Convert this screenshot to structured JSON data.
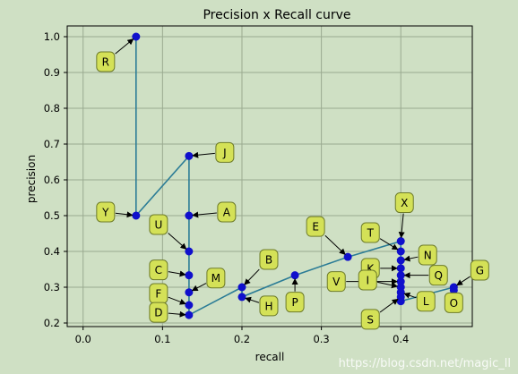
{
  "watermark": "https://blog.csdn.net/magic_ll",
  "chart_data": {
    "type": "line",
    "title": "Precision x Recall curve",
    "xlabel": "recall",
    "ylabel": "precision",
    "xlim": [
      -0.02,
      0.49
    ],
    "ylim": [
      0.19,
      1.03
    ],
    "xticks": [
      0.0,
      0.1,
      0.2,
      0.3,
      0.4
    ],
    "xtick_labels": [
      "0.0",
      "0.1",
      "0.2",
      "0.3",
      "0.4"
    ],
    "yticks": [
      0.2,
      0.3,
      0.4,
      0.5,
      0.6,
      0.7,
      0.8,
      0.9,
      1.0
    ],
    "ytick_labels": [
      "0.2",
      "0.3",
      "0.4",
      "0.5",
      "0.6",
      "0.7",
      "0.8",
      "0.9",
      "1.0"
    ],
    "grid": true,
    "series": [
      {
        "x": [
          0.0667,
          0.0667,
          0.1333,
          0.1333,
          0.1333,
          0.1333,
          0.1333,
          0.1333,
          0.1333,
          0.2,
          0.2,
          0.2667,
          0.3333,
          0.4,
          0.4,
          0.4,
          0.4,
          0.4,
          0.4,
          0.4,
          0.4,
          0.4,
          0.4,
          0.4667,
          0.4667
        ],
        "y": [
          1.0,
          0.5,
          0.6667,
          0.5,
          0.4,
          0.3333,
          0.2857,
          0.25,
          0.2222,
          0.3,
          0.2727,
          0.3333,
          0.3846,
          0.4286,
          0.4,
          0.375,
          0.3529,
          0.3333,
          0.3158,
          0.3,
          0.2857,
          0.2727,
          0.2609,
          0.3,
          0.2917
        ]
      }
    ],
    "annotations": [
      {
        "label": "R",
        "x": 0.0667,
        "y": 1.0
      },
      {
        "label": "Y",
        "x": 0.0667,
        "y": 0.5
      },
      {
        "label": "J",
        "x": 0.1333,
        "y": 0.6667
      },
      {
        "label": "A",
        "x": 0.1333,
        "y": 0.5
      },
      {
        "label": "U",
        "x": 0.1333,
        "y": 0.4
      },
      {
        "label": "C",
        "x": 0.1333,
        "y": 0.3333
      },
      {
        "label": "M",
        "x": 0.1333,
        "y": 0.2857
      },
      {
        "label": "F",
        "x": 0.1333,
        "y": 0.25
      },
      {
        "label": "D",
        "x": 0.1333,
        "y": 0.2222
      },
      {
        "label": "B",
        "x": 0.2,
        "y": 0.3
      },
      {
        "label": "H",
        "x": 0.2,
        "y": 0.2727
      },
      {
        "label": "P",
        "x": 0.2667,
        "y": 0.3333
      },
      {
        "label": "E",
        "x": 0.3333,
        "y": 0.3846
      },
      {
        "label": "X",
        "x": 0.4,
        "y": 0.4286
      },
      {
        "label": "T",
        "x": 0.4,
        "y": 0.4
      },
      {
        "label": "N",
        "x": 0.4,
        "y": 0.375
      },
      {
        "label": "K",
        "x": 0.4,
        "y": 0.3529
      },
      {
        "label": "Q",
        "x": 0.4,
        "y": 0.3333
      },
      {
        "label": "V",
        "x": 0.4,
        "y": 0.3158
      },
      {
        "label": "I",
        "x": 0.4,
        "y": 0.3
      },
      {
        "label": "L",
        "x": 0.4,
        "y": 0.2857
      },
      {
        "label": "S",
        "x": 0.4,
        "y": 0.2727
      },
      {
        "label": "G",
        "x": 0.4667,
        "y": 0.3
      },
      {
        "label": "O",
        "x": 0.4667,
        "y": 0.2917
      }
    ]
  }
}
